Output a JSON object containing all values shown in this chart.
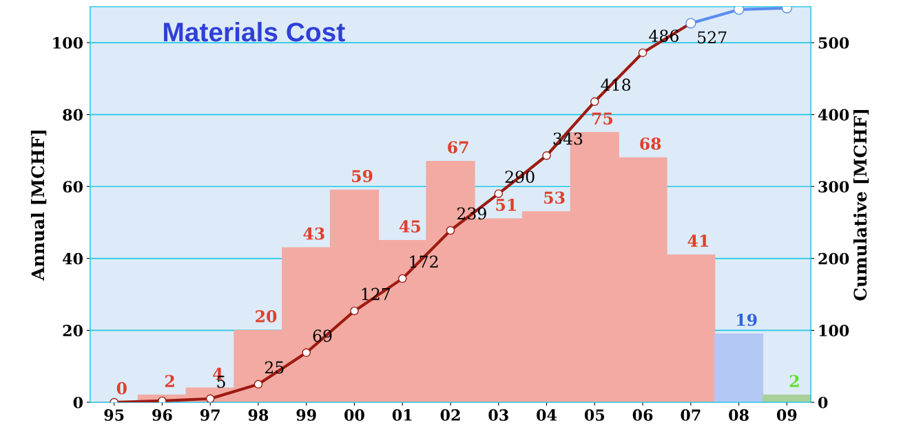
{
  "chart_data": {
    "type": "bar",
    "title": "Materials Cost",
    "ylabel": "Annual [MCHF]",
    "y2label": "Cumulative [MCHF]",
    "categories": [
      "95",
      "96",
      "97",
      "98",
      "99",
      "00",
      "01",
      "02",
      "03",
      "04",
      "05",
      "06",
      "07",
      "08",
      "09"
    ],
    "series": [
      {
        "values": [
          0,
          2,
          4,
          20,
          43,
          59,
          45,
          67,
          51,
          53,
          75,
          68,
          41,
          19,
          2
        ],
        "colors": [
          "#f2aaa2",
          "#f2aaa2",
          "#f2aaa2",
          "#f2aaa2",
          "#f2aaa2",
          "#f2aaa2",
          "#f2aaa2",
          "#f2aaa2",
          "#f2aaa2",
          "#f2aaa2",
          "#f2aaa2",
          "#f2aaa2",
          "#f2aaa2",
          "#b4c8f6",
          "#a8d098"
        ],
        "data_labels": true
      },
      {
        "type": "line",
        "axis": "y2",
        "color": "#9e1a10",
        "marker": "circle",
        "values": [
          0,
          2,
          5,
          25,
          69,
          127,
          172,
          239,
          290,
          343,
          418,
          486,
          527,
          null,
          null
        ],
        "value_labels": [
          null,
          null,
          "5",
          "25",
          "69",
          "127",
          "172",
          "239",
          "290",
          "343",
          "418",
          "486",
          "527",
          null,
          null
        ]
      },
      {
        "type": "line",
        "axis": "y2",
        "color": "#5a8cf0",
        "marker": "circle",
        "values": [
          null,
          null,
          null,
          null,
          null,
          null,
          null,
          null,
          null,
          null,
          null,
          null,
          527,
          546,
          548
        ]
      }
    ],
    "ylim": [
      0,
      110
    ],
    "yticks": [
      0,
      20,
      40,
      60,
      80,
      100
    ],
    "y2lim": [
      0,
      550
    ],
    "y2ticks": [
      0,
      100,
      200,
      300,
      400,
      500
    ],
    "grid": "y",
    "legend": false
  }
}
